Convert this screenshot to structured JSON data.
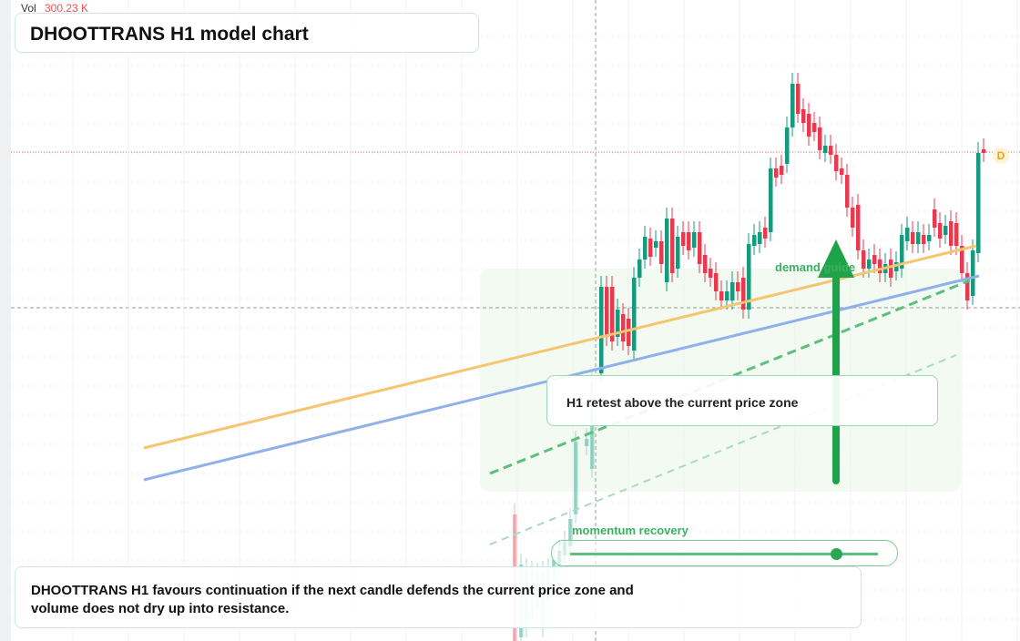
{
  "header": {
    "vol_label": "Vol",
    "vol_value": "300.23 K",
    "title": "DHOOTTRANS H1 model chart"
  },
  "annotations": {
    "demand": "demand guide",
    "retest": "H1 retest above the current price zone",
    "momentum": "momentum recovery",
    "marker": "D"
  },
  "summary": "DHOOTTRANS H1 favours continuation if the next candle defends the current price zone and volume does not dry up into resistance."
}
